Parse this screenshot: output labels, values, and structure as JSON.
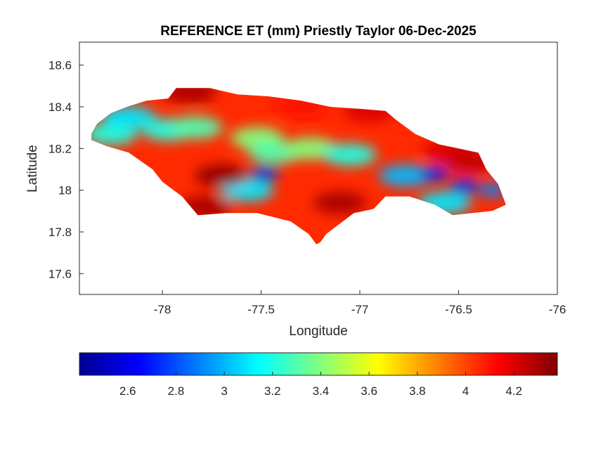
{
  "title": "REFERENCE ET (mm) Priestly Taylor 06-Dec-2025",
  "xlabel": "Longitude",
  "ylabel": "Latitude",
  "x_ticks": [
    "-78",
    "-77.5",
    "-77",
    "-76.5",
    "-76"
  ],
  "y_ticks": [
    "17.6",
    "17.8",
    "18",
    "18.2",
    "18.4",
    "18.6"
  ],
  "colorbar_ticks": [
    "2.6",
    "2.8",
    "3",
    "3.2",
    "3.4",
    "3.6",
    "3.8",
    "4",
    "4.2"
  ],
  "colormap": "jet",
  "colors": {
    "low": "#00008f",
    "mid_low": "#00ffff",
    "mid": "#ffff00",
    "high": "#ff0000",
    "max": "#800000"
  },
  "chart_data": {
    "type": "heatmap",
    "title": "REFERENCE ET (mm) Priestly Taylor 06-Dec-2025",
    "xlabel": "Longitude",
    "ylabel": "Latitude",
    "xlim": [
      -78.42,
      -76
    ],
    "ylim": [
      17.5,
      18.71
    ],
    "x_ticks": [
      -78,
      -77.5,
      -77,
      -76.5,
      -76
    ],
    "y_ticks": [
      17.6,
      17.8,
      18,
      18.2,
      18.4,
      18.6
    ],
    "colorbar": {
      "min": 2.4,
      "max": 4.38,
      "ticks": [
        2.6,
        2.8,
        3,
        3.2,
        3.4,
        3.6,
        3.8,
        4,
        4.2
      ],
      "colormap": "jet",
      "location": "bottom"
    },
    "region_outline": [
      [
        -78.36,
        18.27
      ],
      [
        -78.33,
        18.32
      ],
      [
        -78.26,
        18.37
      ],
      [
        -78.18,
        18.4
      ],
      [
        -78.08,
        18.43
      ],
      [
        -77.97,
        18.44
      ],
      [
        -77.93,
        18.49
      ],
      [
        -77.76,
        18.49
      ],
      [
        -77.62,
        18.46
      ],
      [
        -77.46,
        18.45
      ],
      [
        -77.3,
        18.43
      ],
      [
        -77.15,
        18.4
      ],
      [
        -77.0,
        18.39
      ],
      [
        -76.87,
        18.38
      ],
      [
        -76.82,
        18.34
      ],
      [
        -76.72,
        18.27
      ],
      [
        -76.6,
        18.22
      ],
      [
        -76.4,
        18.18
      ],
      [
        -76.36,
        18.1
      ],
      [
        -76.3,
        18.03
      ],
      [
        -76.26,
        17.93
      ],
      [
        -76.33,
        17.9
      ],
      [
        -76.53,
        17.88
      ],
      [
        -76.62,
        17.93
      ],
      [
        -76.75,
        17.97
      ],
      [
        -76.87,
        17.97
      ],
      [
        -76.93,
        17.91
      ],
      [
        -77.03,
        17.89
      ],
      [
        -77.1,
        17.84
      ],
      [
        -77.17,
        17.79
      ],
      [
        -77.2,
        17.75
      ],
      [
        -77.22,
        17.74
      ],
      [
        -77.26,
        17.79
      ],
      [
        -77.35,
        17.85
      ],
      [
        -77.52,
        17.89
      ],
      [
        -77.68,
        17.89
      ],
      [
        -77.82,
        17.88
      ],
      [
        -77.9,
        17.97
      ],
      [
        -78.0,
        18.04
      ],
      [
        -78.05,
        18.1
      ],
      [
        -78.17,
        18.18
      ],
      [
        -78.28,
        18.21
      ],
      [
        -78.36,
        18.24
      ]
    ],
    "value_centers": [
      {
        "lon": -78.26,
        "lat": 18.27,
        "value": 3.2
      },
      {
        "lon": -78.17,
        "lat": 18.35,
        "value": 3.1
      },
      {
        "lon": -77.97,
        "lat": 18.29,
        "value": 3.2
      },
      {
        "lon": -77.83,
        "lat": 18.3,
        "value": 3.3
      },
      {
        "lon": -77.52,
        "lat": 18.25,
        "value": 3.4
      },
      {
        "lon": -77.48,
        "lat": 18.08,
        "value": 2.6
      },
      {
        "lon": -77.43,
        "lat": 18.18,
        "value": 3.3
      },
      {
        "lon": -77.57,
        "lat": 18.0,
        "value": 3.1
      },
      {
        "lon": -77.25,
        "lat": 18.2,
        "value": 3.4
      },
      {
        "lon": -77.05,
        "lat": 18.17,
        "value": 3.2
      },
      {
        "lon": -76.77,
        "lat": 18.07,
        "value": 3.0
      },
      {
        "lon": -76.62,
        "lat": 18.08,
        "value": 2.7
      },
      {
        "lon": -76.47,
        "lat": 18.02,
        "value": 2.7
      },
      {
        "lon": -76.33,
        "lat": 18.0,
        "value": 2.9
      },
      {
        "lon": -76.57,
        "lat": 17.94,
        "value": 3.1
      },
      {
        "lon": -77.7,
        "lat": 18.07,
        "value": 4.35
      },
      {
        "lon": -77.1,
        "lat": 17.94,
        "value": 4.3
      },
      {
        "lon": -76.95,
        "lat": 18.38,
        "value": 4.2
      },
      {
        "lon": -76.55,
        "lat": 18.19,
        "value": 4.2
      },
      {
        "lon": -77.86,
        "lat": 18.47,
        "value": 4.3
      },
      {
        "lon": -77.78,
        "lat": 17.92,
        "value": 4.3
      },
      {
        "lon": -76.43,
        "lat": 18.14,
        "value": 4.25
      },
      {
        "lon": -77.3,
        "lat": 18.4,
        "value": 4.1
      }
    ]
  }
}
